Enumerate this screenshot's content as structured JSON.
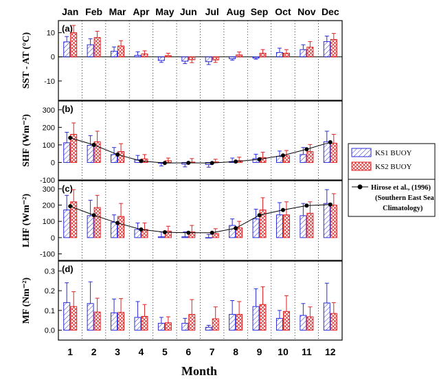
{
  "months_top": [
    "Jan",
    "Feb",
    "Mar",
    "Apr",
    "May",
    "Jun",
    "Jul",
    "Aug",
    "Sep",
    "Oct",
    "Nov",
    "Dec"
  ],
  "xlabel": "Month",
  "x_ticks": [
    "1",
    "2",
    "3",
    "4",
    "5",
    "6",
    "7",
    "8",
    "9",
    "10",
    "11",
    "12"
  ],
  "colors": {
    "ks1": "#2a2ad8",
    "ks2": "#e02020",
    "hirose": "#000000"
  },
  "legend": {
    "ks1": "KS1 BUOY",
    "ks2": "KS2 BUOY",
    "hirose_line1": "Hirose et al., (1996)",
    "hirose_line2": "(Southern East Sea",
    "hirose_line3": "Climatology)"
  },
  "panels": [
    {
      "tag": "(a)",
      "ylabel": "SST - AT (°C)"
    },
    {
      "tag": "(b)",
      "ylabel": "SHF (Wm⁻²)"
    },
    {
      "tag": "(c)",
      "ylabel": "LHF (Wm⁻²)"
    },
    {
      "tag": "(d)",
      "ylabel": "MF (Nm⁻²)"
    }
  ],
  "chart_data": [
    {
      "type": "bar",
      "panel": "(a)",
      "ylabel": "SST - AT (°C)",
      "categories": [
        1,
        2,
        3,
        4,
        5,
        6,
        7,
        8,
        9,
        10,
        11,
        12
      ],
      "ylim": [
        -18,
        15
      ],
      "yticks": [
        -10,
        0,
        10
      ],
      "grid": "dotted vertical",
      "series": [
        {
          "name": "KS1 BUOY",
          "values": [
            6.2,
            5.0,
            2.3,
            0.6,
            -1.5,
            -1.8,
            -2.0,
            -0.8,
            -0.5,
            1.8,
            3.0,
            6.3
          ],
          "errors": [
            2.2,
            2.5,
            1.8,
            1.5,
            0.8,
            1.0,
            1.2,
            0.6,
            0.5,
            1.8,
            2.0,
            2.3
          ]
        },
        {
          "name": "KS2 BUOY",
          "values": [
            10.0,
            8.0,
            4.5,
            1.2,
            0.5,
            -1.2,
            -1.3,
            0.8,
            1.5,
            1.5,
            4.0,
            7.2
          ],
          "errors": [
            3.0,
            2.6,
            2.2,
            1.3,
            1.0,
            1.2,
            1.0,
            1.2,
            1.5,
            1.5,
            2.3,
            2.5
          ]
        }
      ]
    },
    {
      "type": "bar",
      "panel": "(b)",
      "ylabel": "SHF (Wm⁻²)",
      "categories": [
        1,
        2,
        3,
        4,
        5,
        6,
        7,
        8,
        9,
        10,
        11,
        12
      ],
      "ylim": [
        -100,
        350
      ],
      "yticks": [
        -100,
        0,
        100,
        200,
        300
      ],
      "grid": "dotted vertical",
      "series": [
        {
          "name": "KS1 BUOY",
          "values": [
            112,
            98,
            45,
            15,
            -5,
            -10,
            -12,
            5,
            22,
            35,
            45,
            118
          ],
          "errors": [
            60,
            55,
            40,
            25,
            15,
            15,
            15,
            20,
            25,
            30,
            40,
            60
          ]
        },
        {
          "name": "KS2 BUOY",
          "values": [
            160,
            118,
            62,
            20,
            10,
            2,
            3,
            10,
            28,
            38,
            62,
            110
          ],
          "errors": [
            65,
            60,
            45,
            25,
            15,
            20,
            15,
            20,
            30,
            30,
            40,
            50
          ]
        },
        {
          "name": "Hirose et al., (1996)",
          "type": "line",
          "values": [
            140,
            100,
            45,
            8,
            -3,
            -2,
            -3,
            5,
            18,
            40,
            75,
            115
          ]
        }
      ]
    },
    {
      "type": "bar",
      "panel": "(c)",
      "ylabel": "LHF (Wm⁻²)",
      "categories": [
        1,
        2,
        3,
        4,
        5,
        6,
        7,
        8,
        9,
        10,
        11,
        12
      ],
      "ylim": [
        -140,
        350
      ],
      "yticks": [
        -100,
        0,
        100,
        200,
        300
      ],
      "grid": "dotted vertical",
      "series": [
        {
          "name": "KS1 BUOY",
          "values": [
            170,
            135,
            95,
            50,
            5,
            5,
            0,
            75,
            115,
            140,
            135,
            210
          ],
          "errors": [
            90,
            95,
            45,
            40,
            30,
            30,
            20,
            40,
            60,
            75,
            75,
            85
          ]
        },
        {
          "name": "KS2 BUOY",
          "values": [
            220,
            185,
            130,
            50,
            40,
            35,
            25,
            60,
            170,
            140,
            150,
            200
          ],
          "errors": [
            75,
            75,
            80,
            40,
            30,
            40,
            30,
            40,
            75,
            80,
            70,
            70
          ]
        },
        {
          "name": "Hirose et al., (1996)",
          "type": "line",
          "values": [
            193,
            138,
            90,
            50,
            33,
            30,
            30,
            58,
            138,
            170,
            197,
            203
          ]
        }
      ]
    },
    {
      "type": "bar",
      "panel": "(d)",
      "ylabel": "MF (Nm⁻²)",
      "categories": [
        1,
        2,
        3,
        4,
        5,
        6,
        7,
        8,
        9,
        10,
        11,
        12
      ],
      "ylim": [
        -0.05,
        0.35
      ],
      "yticks": [
        0.0,
        0.1,
        0.2,
        0.3
      ],
      "grid": "dotted vertical",
      "series": [
        {
          "name": "KS1 BUOY",
          "values": [
            0.14,
            0.135,
            0.088,
            0.065,
            0.035,
            0.035,
            0.015,
            0.08,
            0.12,
            0.06,
            0.075,
            0.138
          ],
          "errors": [
            0.1,
            0.11,
            0.07,
            0.08,
            0.03,
            0.025,
            0.01,
            0.07,
            0.09,
            0.04,
            0.06,
            0.1
          ]
        },
        {
          "name": "KS2 BUOY",
          "values": [
            0.12,
            0.092,
            0.09,
            0.07,
            0.038,
            0.08,
            0.058,
            0.08,
            0.13,
            0.095,
            0.068,
            0.085
          ],
          "errors": [
            0.075,
            0.07,
            0.07,
            0.06,
            0.03,
            0.075,
            0.06,
            0.065,
            0.09,
            0.08,
            0.05,
            0.055
          ]
        }
      ]
    }
  ]
}
